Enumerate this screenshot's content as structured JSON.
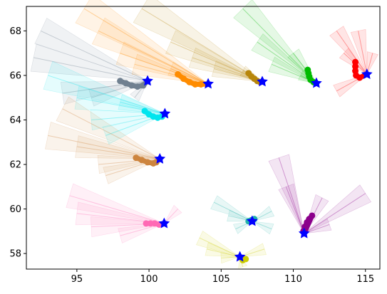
{
  "chart_data": {
    "type": "scatter",
    "title": "",
    "xlabel": "",
    "ylabel": "",
    "xlim": [
      91.5,
      116.0
    ],
    "ylim": [
      57.3,
      69.1
    ],
    "x_ticks": [
      95,
      100,
      105,
      110,
      115
    ],
    "y_ticks": [
      58,
      60,
      62,
      64,
      66,
      68
    ],
    "x_tick_labels": [
      "95",
      "100",
      "105",
      "110",
      "115"
    ],
    "y_tick_labels": [
      "58",
      "60",
      "62",
      "64",
      "66",
      "68"
    ],
    "grid": false,
    "legend": "none",
    "end_marker_color": "#0000ff",
    "series": [
      {
        "color": "#708090",
        "points": [
          [
            98.0,
            65.75
          ],
          [
            98.4,
            65.65
          ],
          [
            98.8,
            65.55
          ],
          [
            99.2,
            65.5
          ],
          [
            99.6,
            65.55
          ]
        ],
        "end": [
          99.9,
          65.75
        ],
        "fan": [
          [
            92.5,
            68.0
          ],
          [
            92.0,
            66.8
          ],
          [
            94.0,
            65.2
          ],
          [
            96.0,
            65.0
          ],
          [
            99.0,
            65.0
          ]
        ]
      },
      {
        "color": "#ff8c00",
        "points": [
          [
            102.0,
            66.05
          ],
          [
            102.4,
            65.85
          ],
          [
            102.8,
            65.7
          ],
          [
            103.2,
            65.6
          ],
          [
            103.6,
            65.6
          ]
        ],
        "end": [
          104.1,
          65.62
        ],
        "fan": [
          [
            95.5,
            69.0
          ],
          [
            96.5,
            68.0
          ],
          [
            98.0,
            67.0
          ],
          [
            99.0,
            66.5
          ],
          [
            101.5,
            66.3
          ]
        ]
      },
      {
        "color": "#b8860b",
        "points": [
          [
            106.9,
            66.1
          ],
          [
            107.1,
            65.95
          ],
          [
            107.3,
            65.85
          ],
          [
            107.5,
            65.75
          ],
          [
            107.7,
            65.7
          ]
        ],
        "end": [
          107.85,
          65.72
        ],
        "fan": [
          [
            99.5,
            69.0
          ],
          [
            101.5,
            67.5
          ],
          [
            103.0,
            66.8
          ],
          [
            104.5,
            66.3
          ],
          [
            106.5,
            66.2
          ]
        ]
      },
      {
        "color": "#00bb00",
        "points": [
          [
            111.0,
            66.25
          ],
          [
            111.05,
            66.1
          ],
          [
            111.1,
            65.95
          ],
          [
            111.2,
            65.8
          ],
          [
            111.4,
            65.7
          ]
        ],
        "end": [
          111.6,
          65.65
        ],
        "fan": [
          [
            106.5,
            69.0
          ],
          [
            107.5,
            67.5
          ],
          [
            108.5,
            66.5
          ],
          [
            110.0,
            67.0
          ],
          [
            110.5,
            66.0
          ]
        ]
      },
      {
        "color": "#ff0000",
        "points": [
          [
            114.3,
            66.6
          ],
          [
            114.3,
            66.4
          ],
          [
            114.3,
            66.2
          ],
          [
            114.35,
            66.0
          ],
          [
            114.6,
            65.9
          ]
        ],
        "end": [
          115.1,
          66.05
        ],
        "fan": [
          [
            113.0,
            68.0
          ],
          [
            113.5,
            67.0
          ],
          [
            114.5,
            68.0
          ],
          [
            115.5,
            67.0
          ],
          [
            113.0,
            65.3
          ]
        ]
      },
      {
        "color": "#00e5ee",
        "points": [
          [
            99.7,
            64.4
          ],
          [
            100.0,
            64.25
          ],
          [
            100.3,
            64.15
          ],
          [
            100.6,
            64.1
          ],
          [
            100.9,
            64.15
          ]
        ],
        "end": [
          101.1,
          64.28
        ],
        "fan": [
          [
            93.0,
            66.0
          ],
          [
            95.0,
            65.0
          ],
          [
            96.0,
            64.0
          ],
          [
            98.0,
            64.8
          ],
          [
            97.0,
            63.3
          ]
        ]
      },
      {
        "color": "#cd853f",
        "points": [
          [
            99.1,
            62.3
          ],
          [
            99.5,
            62.2
          ],
          [
            99.9,
            62.1
          ],
          [
            100.3,
            62.05
          ],
          [
            100.5,
            62.1
          ]
        ],
        "end": [
          100.75,
          62.25
        ],
        "fan": [
          [
            94.0,
            64.5
          ],
          [
            93.0,
            63.3
          ],
          [
            95.0,
            62.8
          ],
          [
            96.5,
            62.0
          ],
          [
            97.0,
            61.5
          ]
        ]
      },
      {
        "color": "#ff69b4",
        "points": [
          [
            99.8,
            59.35
          ],
          [
            100.1,
            59.35
          ],
          [
            100.4,
            59.35
          ],
          [
            100.7,
            59.3
          ]
        ],
        "end": [
          101.05,
          59.35
        ],
        "fan": [
          [
            94.5,
            60.6
          ],
          [
            95.0,
            59.8
          ],
          [
            96.0,
            59.2
          ],
          [
            98.0,
            58.8
          ],
          [
            102.0,
            60.0
          ]
        ]
      },
      {
        "color": "#20b2aa",
        "points": [
          [
            106.9,
            59.45
          ],
          [
            107.1,
            59.5
          ],
          [
            107.3,
            59.55
          ]
        ],
        "end": [
          107.15,
          59.45
        ],
        "fan": [
          [
            104.5,
            60.3
          ],
          [
            105.5,
            59.7
          ],
          [
            106.0,
            59.1
          ],
          [
            108.5,
            59.9
          ],
          [
            108.5,
            59.1
          ]
        ]
      },
      {
        "color": "#8b008b",
        "points": [
          [
            110.7,
            59.0
          ],
          [
            110.8,
            59.2
          ],
          [
            110.95,
            59.4
          ],
          [
            111.1,
            59.55
          ],
          [
            111.3,
            59.7
          ]
        ],
        "end": [
          110.75,
          58.9
        ],
        "fan": [
          [
            109.0,
            62.3
          ],
          [
            109.5,
            61.0
          ],
          [
            112.0,
            60.5
          ],
          [
            115.0,
            60.7
          ],
          [
            112.5,
            59.3
          ]
        ]
      },
      {
        "color": "#cccc00",
        "points": [
          [
            106.4,
            57.8
          ],
          [
            106.5,
            57.7
          ],
          [
            106.7,
            57.75
          ]
        ],
        "end": [
          106.3,
          57.85
        ],
        "fan": [
          [
            103.5,
            58.7
          ],
          [
            104.0,
            58.2
          ],
          [
            105.0,
            57.8
          ],
          [
            108.0,
            58.2
          ],
          [
            106.5,
            57.4
          ]
        ]
      }
    ]
  }
}
